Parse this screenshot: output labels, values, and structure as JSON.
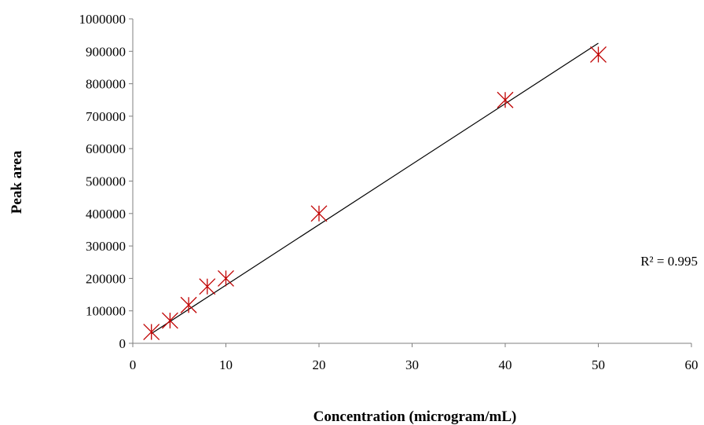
{
  "chart_data": {
    "type": "scatter",
    "title": "",
    "xlabel": "Concentration (microgram/mL)",
    "ylabel": "Peak  area",
    "xlim": [
      0,
      60
    ],
    "ylim": [
      0,
      1000000
    ],
    "x_ticks": [
      0,
      10,
      20,
      30,
      40,
      50,
      60
    ],
    "y_ticks": [
      0,
      100000,
      200000,
      300000,
      400000,
      500000,
      600000,
      700000,
      800000,
      900000,
      1000000
    ],
    "grid": false,
    "legend": "none",
    "marker_color": "#c00000",
    "trendline_color": "#000000",
    "series": [
      {
        "x": [
          2,
          4,
          6,
          8,
          10,
          20,
          40,
          50
        ],
        "y": [
          35000,
          70000,
          118000,
          175000,
          200000,
          400000,
          750000,
          890000
        ]
      }
    ],
    "trendline": {
      "type": "linear",
      "x": [
        2,
        50
      ],
      "y": [
        30000,
        925000
      ]
    },
    "annotations": [
      {
        "text": "R² = 0.995"
      }
    ]
  }
}
